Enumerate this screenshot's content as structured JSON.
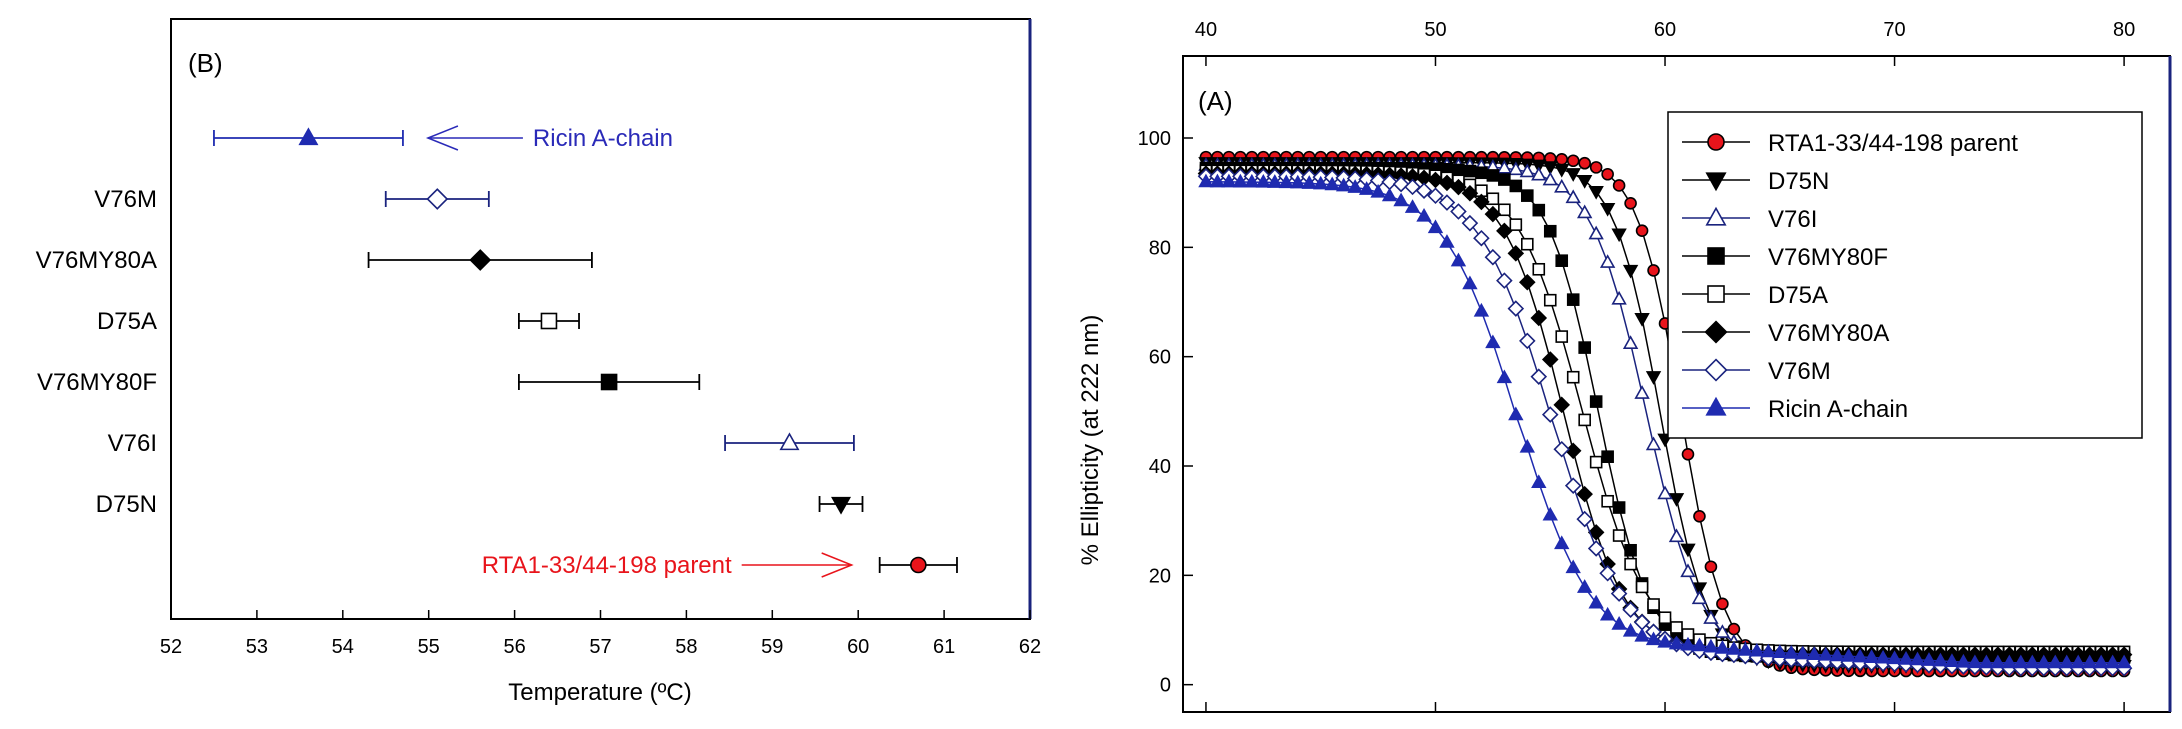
{
  "chart_data": [
    {
      "panel_label": "(B)",
      "type": "scatter",
      "xlabel": "Temperature (ºC)",
      "xlim": [
        52,
        62
      ],
      "xticks": [
        "52",
        "53",
        "54",
        "55",
        "56",
        "57",
        "58",
        "59",
        "60",
        "61",
        "62"
      ],
      "points": [
        {
          "label": "",
          "value": 53.6,
          "err": 1.1,
          "marker": "triangle-up",
          "fill": "#1f2bb0",
          "color": "#1f2bb0"
        },
        {
          "label": "V76M",
          "value": 55.1,
          "err": 0.6,
          "marker": "diamond",
          "fill": "#ffffff",
          "color": "#1a237e"
        },
        {
          "label": "V76MY80A",
          "value": 55.6,
          "err": 1.3,
          "marker": "diamond",
          "fill": "#000000",
          "color": "#000000"
        },
        {
          "label": "D75A",
          "value": 56.4,
          "err": 0.35,
          "marker": "square",
          "fill": "#ffffff",
          "color": "#000000"
        },
        {
          "label": "V76MY80F",
          "value": 57.1,
          "err": 1.05,
          "marker": "square",
          "fill": "#000000",
          "color": "#000000"
        },
        {
          "label": "V76I",
          "value": 59.2,
          "err": 0.75,
          "marker": "triangle-up",
          "fill": "#ffffff",
          "color": "#1a237e"
        },
        {
          "label": "D75N",
          "value": 59.8,
          "err": 0.25,
          "marker": "triangle-down",
          "fill": "#000000",
          "color": "#000000"
        },
        {
          "label": "",
          "value": 60.7,
          "err": 0.45,
          "marker": "circle",
          "fill": "#e8141b",
          "color": "#000000"
        }
      ],
      "annotations": [
        {
          "text": "Ricin A-chain",
          "color": "#2a2ab8",
          "points_to": 0
        },
        {
          "text": "RTA1-33/44-198 parent",
          "color": "#e8141b",
          "points_to": 7
        }
      ]
    },
    {
      "panel_label": "(A)",
      "type": "line",
      "ylabel": "% Ellipticity (at 222 nm)",
      "xlim": [
        39,
        82
      ],
      "ylim": [
        -5,
        115
      ],
      "xticks": [
        "40",
        "50",
        "60",
        "70",
        "80"
      ],
      "yticks": [
        "0",
        "20",
        "40",
        "60",
        "80",
        "100"
      ],
      "x_start": 40,
      "x_end": 80,
      "x_step": 0.5,
      "series": [
        {
          "name": "RTA1-33/44-198 parent",
          "marker": "circle",
          "fill": "#e8141b",
          "line": "#000000",
          "top": 96.5,
          "bottom": 2.5,
          "tm": 60.7,
          "width": 0.95,
          "slope": 0,
          "tail": 2.5
        },
        {
          "name": "D75N",
          "marker": "triangle-down",
          "fill": "#000000",
          "line": "#000000",
          "top": 95.5,
          "bottom": 3.5,
          "tm": 59.8,
          "width": 1.0,
          "slope": 0,
          "tail": 3.5
        },
        {
          "name": "V76I",
          "marker": "triangle-up",
          "fill": "#ffffff",
          "line": "#1a237e",
          "top": 95.0,
          "bottom": 4.0,
          "tm": 59.2,
          "width": 1.2,
          "slope": 0.02,
          "tail": 4.0
        },
        {
          "name": "V76MY80F",
          "marker": "square",
          "fill": "#000000",
          "line": "#000000",
          "top": 94.5,
          "bottom": 5.0,
          "tm": 57.1,
          "width": 1.1,
          "slope": 0,
          "tail": 5.0
        },
        {
          "name": "D75A",
          "marker": "square",
          "fill": "#ffffff",
          "line": "#000000",
          "top": 94.0,
          "bottom": 6.0,
          "tm": 56.4,
          "width": 1.4,
          "slope": 0,
          "tail": 6.0
        },
        {
          "name": "V76MY80A",
          "marker": "diamond",
          "fill": "#000000",
          "line": "#000000",
          "top": 93.5,
          "bottom": 5.5,
          "tm": 55.6,
          "width": 1.3,
          "slope": 0,
          "tail": 5.5
        },
        {
          "name": "V76M",
          "marker": "diamond",
          "fill": "#ffffff",
          "line": "#1a237e",
          "top": 93.0,
          "bottom": 3.0,
          "tm": 55.1,
          "width": 1.6,
          "slope": 0.25,
          "tail": 3.0
        },
        {
          "name": "Ricin A-chain",
          "marker": "triangle-up",
          "fill": "#1f2bb0",
          "line": "#1f2bb0",
          "top": 92.0,
          "bottom": 4.0,
          "tm": 53.6,
          "width": 1.6,
          "slope": 0.35,
          "tail": 4.0
        }
      ]
    }
  ]
}
